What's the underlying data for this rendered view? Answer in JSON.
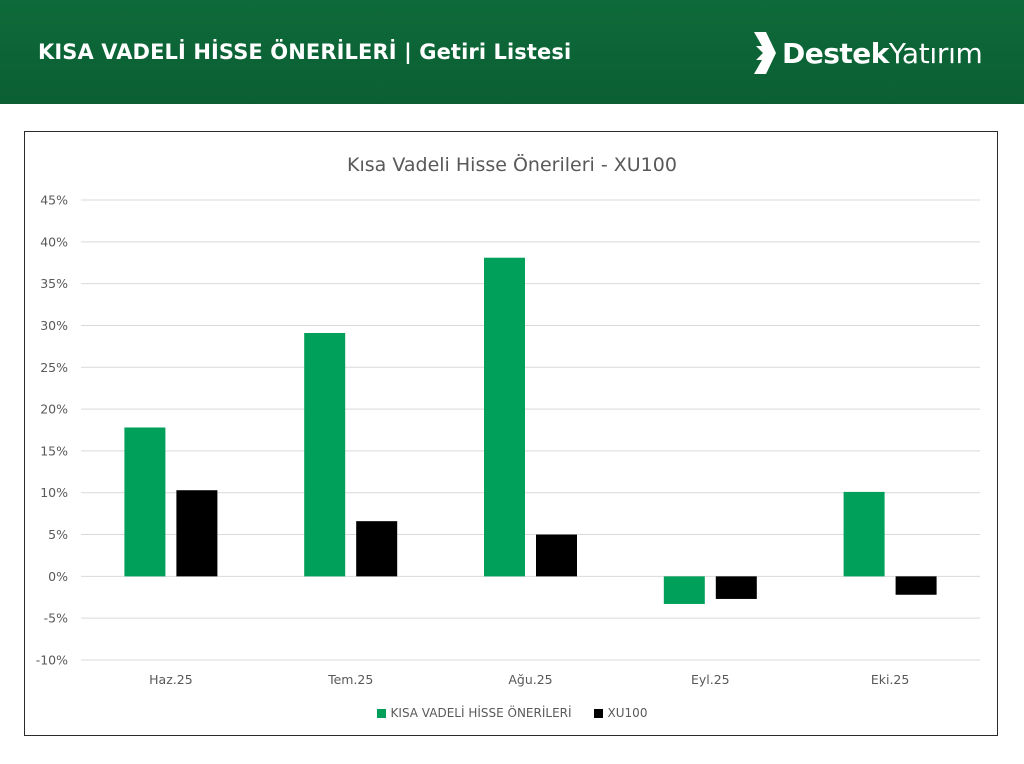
{
  "header": {
    "title": "KISA VADELİ HİSSE ÖNERİLERİ | Getiri Listesi",
    "logo_bold": "Destek",
    "logo_light": "Yatırım"
  },
  "colors": {
    "header_bg": "#0e6a3a",
    "series_1": "#00a05a",
    "series_2": "#000000",
    "gridline": "#d9d9d9"
  },
  "chart_data": {
    "type": "bar",
    "title": "Kısa Vadeli Hisse Önerileri - XU100",
    "categories": [
      "Haz.25",
      "Tem.25",
      "Ağu.25",
      "Eyl.25",
      "Eki.25"
    ],
    "series": [
      {
        "name": "KISA VADELİ HİSSE ÖNERİLERİ",
        "color": "#00a05a",
        "values": [
          17.8,
          29.1,
          38.1,
          -3.3,
          10.1
        ]
      },
      {
        "name": "XU100",
        "color": "#000000",
        "values": [
          10.3,
          6.6,
          5.0,
          -2.7,
          -2.2
        ]
      }
    ],
    "ylim": [
      -10,
      45
    ],
    "yticks": [
      45,
      40,
      35,
      30,
      25,
      20,
      15,
      10,
      5,
      0,
      -5,
      -10
    ],
    "ytick_labels": [
      "45%",
      "40%",
      "35%",
      "30%",
      "25%",
      "20%",
      "15%",
      "10%",
      "5%",
      "0%",
      "-5%",
      "-10%"
    ],
    "grid": true,
    "legend_position": "bottom"
  }
}
